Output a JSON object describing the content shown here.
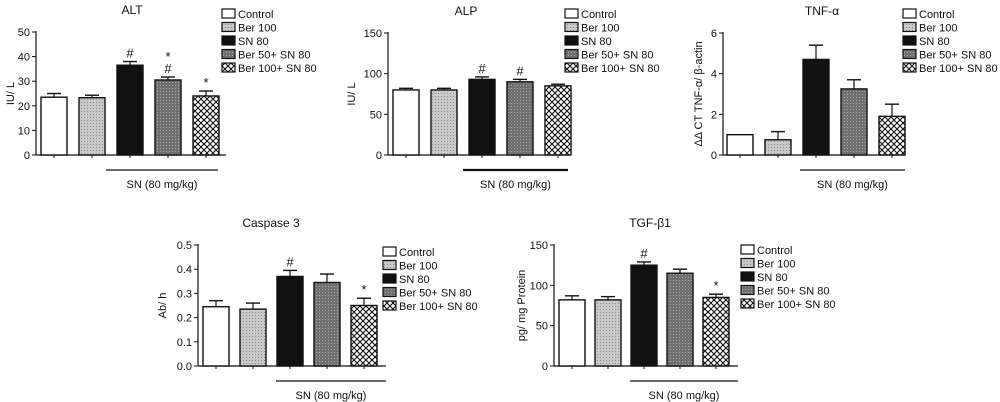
{
  "legend_labels": [
    "Control",
    "Ber 100",
    "SN 80",
    "Ber 50+ SN 80",
    "Ber 100+ SN 80"
  ],
  "chart_data": [
    {
      "type": "bar",
      "title": "ALT",
      "ylabel": "IU/ L",
      "xlabel": "SN (80 mg/kg)",
      "ylim": [
        0,
        50
      ],
      "yticks": [
        "0",
        "10",
        "20",
        "30",
        "40",
        "50"
      ],
      "categories": [
        "Control",
        "Ber 100",
        "SN 80",
        "Ber 50+ SN 80",
        "Ber 100+ SN 80"
      ],
      "values": [
        23.5,
        23.3,
        36.5,
        30.5,
        24.0
      ],
      "errors": [
        1.5,
        1.0,
        1.5,
        1.2,
        2.0
      ],
      "annotations": [
        "",
        "",
        "#",
        "*\n#",
        "*"
      ]
    },
    {
      "type": "bar",
      "title": "ALP",
      "ylabel": "IU/ L",
      "xlabel": "SN (80 mg/kg)",
      "ylim": [
        0,
        150
      ],
      "yticks": [
        "0",
        "50",
        "100",
        "150"
      ],
      "categories": [
        "Control",
        "Ber 100",
        "SN 80",
        "Ber 50+ SN 80",
        "Ber 100+ SN 80"
      ],
      "values": [
        80,
        80,
        93,
        90,
        85
      ],
      "errors": [
        2,
        2,
        3,
        3,
        2
      ],
      "annotations": [
        "",
        "",
        "#",
        "#",
        ""
      ]
    },
    {
      "type": "bar",
      "title": "TNF-α",
      "ylabel": "ΔΔ CT TNF-α/ β-actin",
      "xlabel": "SN (80 mg/kg)",
      "ylim": [
        0,
        6
      ],
      "yticks": [
        "0",
        "2",
        "4",
        "6"
      ],
      "categories": [
        "Control",
        "Ber 100",
        "SN 80",
        "Ber 50+ SN 80",
        "Ber 100+ SN 80"
      ],
      "values": [
        1.0,
        0.75,
        4.7,
        3.25,
        1.9
      ],
      "errors": [
        0,
        0.4,
        0.7,
        0.45,
        0.6
      ],
      "annotations": [
        "",
        "",
        "",
        "",
        ""
      ]
    },
    {
      "type": "bar",
      "title": "Caspase 3",
      "ylabel": "Ab/ h",
      "xlabel": "SN (80 mg/kg)",
      "ylim": [
        0,
        0.5
      ],
      "yticks": [
        "0.0",
        "0.1",
        "0.2",
        "0.3",
        "0.4",
        "0.5"
      ],
      "categories": [
        "Control",
        "Ber 100",
        "SN 80",
        "Ber 50+ SN 80",
        "Ber 100+ SN 80"
      ],
      "values": [
        0.245,
        0.235,
        0.37,
        0.345,
        0.25
      ],
      "errors": [
        0.025,
        0.025,
        0.025,
        0.035,
        0.03
      ],
      "annotations": [
        "",
        "",
        "#",
        "",
        "*"
      ]
    },
    {
      "type": "bar",
      "title": "TGF-β1",
      "ylabel": "pg/ mg Protein",
      "xlabel": "SN (80 mg/kg)",
      "ylim": [
        0,
        150
      ],
      "yticks": [
        "0",
        "50",
        "100",
        "150"
      ],
      "categories": [
        "Control",
        "Ber 100",
        "SN 80",
        "Ber 50+ SN 80",
        "Ber 100+ SN 80"
      ],
      "values": [
        82,
        82,
        125,
        115,
        85
      ],
      "errors": [
        5,
        4,
        4,
        5,
        4
      ],
      "annotations": [
        "",
        "",
        "#",
        "",
        "*"
      ]
    }
  ]
}
